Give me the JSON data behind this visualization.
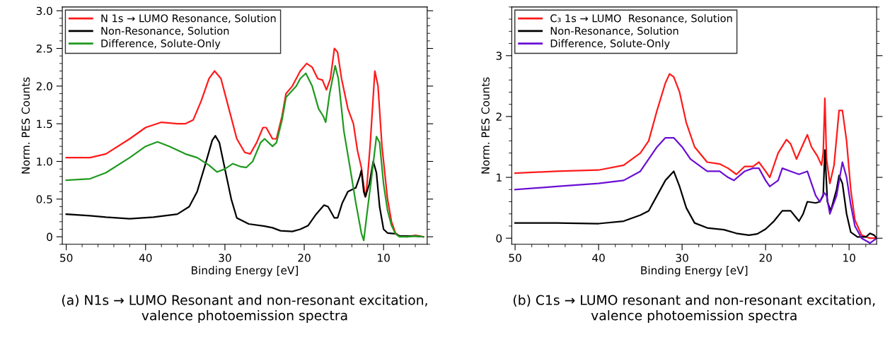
{
  "chart_data": [
    {
      "type": "line",
      "xlabel": "Binding Energy [eV]",
      "ylabel": "Norm. PES Counts",
      "xlim": [
        50.5,
        4.5
      ],
      "ylim": [
        -0.1,
        3.05
      ],
      "xticks": [
        50,
        40,
        30,
        20,
        10
      ],
      "yticks": [
        0,
        0.5,
        {
          "value": 1,
          "label": "1.0"
        },
        1.5,
        {
          "value": 2,
          "label": "2.0"
        },
        2.5,
        {
          "value": 3,
          "label": "3.0"
        }
      ],
      "legend": "top left",
      "grid": false,
      "annotations": [
        "(a) N1s → LUMO Resonant and non-resonant excitation,\nvalence photoemission spectra"
      ],
      "series": [
        {
          "name": "N 1s → LUMO Resonance, Solution",
          "color": "#ff1a1a",
          "x": [
            50,
            47,
            45,
            42,
            40,
            38,
            36,
            35,
            34,
            33,
            32,
            31.3,
            30.5,
            29.5,
            28.5,
            27.5,
            26.8,
            26,
            25.2,
            24.8,
            24,
            23.5,
            22.8,
            22.3,
            21.5,
            20.5,
            19.7,
            19,
            18.3,
            17.7,
            17.2,
            16.7,
            16.2,
            15.8,
            15.3,
            14.5,
            13.8,
            13.3,
            12.8,
            12.4,
            12.2,
            11.7,
            11.1,
            10.7,
            10.2,
            9.5,
            9,
            8.5,
            8,
            7,
            6,
            5
          ],
          "values": [
            1.05,
            1.05,
            1.1,
            1.3,
            1.45,
            1.52,
            1.5,
            1.5,
            1.55,
            1.8,
            2.1,
            2.2,
            2.1,
            1.7,
            1.3,
            1.12,
            1.1,
            1.25,
            1.45,
            1.45,
            1.3,
            1.3,
            1.6,
            1.9,
            2.0,
            2.2,
            2.3,
            2.25,
            2.1,
            2.08,
            1.95,
            2.1,
            2.5,
            2.45,
            2.1,
            1.7,
            1.5,
            1.15,
            0.92,
            0.6,
            0.55,
            1.2,
            2.2,
            2.0,
            1.2,
            0.5,
            0.2,
            0.05,
            0.01,
            0.0,
            0.02,
            0.0
          ]
        },
        {
          "name": "Non-Resonance, Solution",
          "color": "#000000",
          "x": [
            50,
            47,
            45,
            42,
            39,
            36,
            34.5,
            33.5,
            32.5,
            31.6,
            31.2,
            30.7,
            30,
            29.2,
            28.5,
            27,
            25,
            24,
            23,
            21.5,
            20.5,
            19.5,
            18.5,
            17.5,
            17,
            16.2,
            15.8,
            15.2,
            14.5,
            13.5,
            13,
            12.8,
            12.5,
            12.3,
            11.8,
            11.3,
            10.9,
            10.5,
            10,
            9.5,
            8.5,
            8,
            6,
            5
          ],
          "values": [
            0.3,
            0.28,
            0.26,
            0.24,
            0.26,
            0.3,
            0.4,
            0.6,
            0.95,
            1.28,
            1.34,
            1.25,
            0.9,
            0.5,
            0.25,
            0.17,
            0.14,
            0.12,
            0.08,
            0.07,
            0.1,
            0.15,
            0.3,
            0.42,
            0.4,
            0.25,
            0.25,
            0.45,
            0.6,
            0.65,
            0.8,
            0.88,
            0.6,
            0.53,
            0.7,
            1.0,
            0.85,
            0.4,
            0.1,
            0.05,
            0.04,
            0.01,
            0.01,
            0.0
          ]
        },
        {
          "name": "Difference, Solute-Only",
          "color": "#1f9a1f",
          "x": [
            50,
            47,
            45,
            42,
            40,
            38.5,
            37,
            35,
            33.5,
            32,
            31,
            30,
            29,
            28,
            27.3,
            26.5,
            25.5,
            25,
            24,
            23.5,
            22.8,
            22.3,
            21,
            20.5,
            19.8,
            19,
            18.2,
            17.6,
            17.3,
            16.8,
            16.1,
            15.7,
            15,
            14.2,
            13.5,
            12.8,
            12.5,
            12.1,
            11.5,
            10.9,
            10.5,
            10,
            9.5,
            9,
            8.5,
            8,
            7,
            6,
            5
          ],
          "values": [
            0.75,
            0.77,
            0.85,
            1.05,
            1.2,
            1.26,
            1.2,
            1.1,
            1.05,
            0.95,
            0.86,
            0.9,
            0.97,
            0.93,
            0.92,
            1.0,
            1.25,
            1.3,
            1.2,
            1.25,
            1.55,
            1.85,
            2.0,
            2.1,
            2.17,
            2.0,
            1.7,
            1.6,
            1.52,
            1.9,
            2.27,
            2.1,
            1.4,
            0.9,
            0.45,
            0.05,
            -0.05,
            0.3,
            0.8,
            1.33,
            1.25,
            0.7,
            0.35,
            0.15,
            0.04,
            0.0,
            0.0,
            0.01,
            0.0
          ]
        }
      ]
    },
    {
      "type": "line",
      "xlabel": "Binding Energy [eV]",
      "ylabel": "Norm. PES Counts",
      "xlim": [
        50.4,
        6.7
      ],
      "ylim": [
        -0.1,
        3.8
      ],
      "xticks": [
        50,
        40,
        30,
        20,
        10
      ],
      "yticks": [
        0,
        1,
        2,
        3
      ],
      "legend": "top left",
      "grid": false,
      "annotations": [
        "(b) C1s → LUMO resonant and non-resonant excitation,\nvalence photoemission spectra"
      ],
      "series": [
        {
          "name": "C₃ 1s → LUMO  Resonance, Solution",
          "color": "#ff1a1a",
          "x": [
            50,
            45,
            40,
            37,
            35,
            34,
            33,
            32,
            31.5,
            31,
            30.3,
            29.5,
            28.5,
            27,
            25.5,
            24.5,
            23.5,
            22.5,
            21.5,
            20.8,
            20,
            19.5,
            18.5,
            17.5,
            17,
            16.3,
            15.5,
            15,
            14.5,
            13.8,
            13.3,
            13.1,
            12.9,
            12.7,
            12.3,
            11.8,
            11.2,
            10.8,
            10.3,
            9.8,
            9.3,
            8.5,
            7.5,
            6.7
          ],
          "values": [
            1.07,
            1.1,
            1.12,
            1.2,
            1.4,
            1.6,
            2.1,
            2.55,
            2.7,
            2.65,
            2.4,
            1.9,
            1.5,
            1.25,
            1.22,
            1.15,
            1.05,
            1.18,
            1.18,
            1.25,
            1.1,
            1.0,
            1.4,
            1.62,
            1.55,
            1.3,
            1.55,
            1.7,
            1.5,
            1.35,
            1.2,
            1.4,
            2.3,
            1.3,
            0.9,
            1.2,
            2.1,
            2.1,
            1.6,
            0.8,
            0.3,
            0.05,
            0.0,
            0.0
          ]
        },
        {
          "name": "Non-Resonance, Solution",
          "color": "#000000",
          "x": [
            50,
            45,
            40,
            37,
            35,
            34,
            33,
            32,
            31,
            30.3,
            29.5,
            28.5,
            27,
            25,
            23.5,
            22,
            21,
            20,
            19,
            18,
            17,
            16,
            15.5,
            15,
            14,
            13.5,
            13.1,
            12.9,
            12.6,
            12.2,
            11.5,
            11.2,
            10.8,
            10.3,
            9.8,
            9,
            8,
            7.5,
            7,
            6.7
          ],
          "values": [
            0.25,
            0.25,
            0.24,
            0.28,
            0.38,
            0.45,
            0.7,
            0.95,
            1.1,
            0.85,
            0.5,
            0.25,
            0.17,
            0.14,
            0.08,
            0.05,
            0.07,
            0.15,
            0.28,
            0.45,
            0.45,
            0.28,
            0.4,
            0.6,
            0.58,
            0.6,
            0.7,
            1.45,
            0.6,
            0.45,
            0.8,
            1.03,
            0.9,
            0.4,
            0.1,
            0.02,
            0.02,
            0.08,
            0.05,
            0.0
          ]
        },
        {
          "name": "Difference, Solute-Only",
          "color": "#6a0fd4",
          "x": [
            50,
            45,
            40,
            37,
            35,
            34,
            33,
            32,
            31,
            30,
            29,
            27,
            25.5,
            24.5,
            23.8,
            22.5,
            21.5,
            20.8,
            20,
            19.5,
            18.5,
            18,
            17,
            16,
            15,
            14.5,
            14,
            13.5,
            13,
            12.7,
            12.3,
            11.5,
            10.8,
            10.3,
            9.8,
            9.3,
            8.5,
            7.5,
            6.7
          ],
          "values": [
            0.8,
            0.85,
            0.9,
            0.95,
            1.1,
            1.3,
            1.5,
            1.65,
            1.65,
            1.5,
            1.3,
            1.1,
            1.1,
            1.0,
            0.95,
            1.1,
            1.15,
            1.15,
            0.95,
            0.85,
            0.95,
            1.15,
            1.1,
            1.05,
            1.1,
            0.9,
            0.7,
            0.6,
            0.75,
            0.7,
            0.4,
            0.7,
            1.25,
            1.0,
            0.55,
            0.2,
            0.0,
            -0.08,
            0.0
          ]
        }
      ]
    }
  ]
}
